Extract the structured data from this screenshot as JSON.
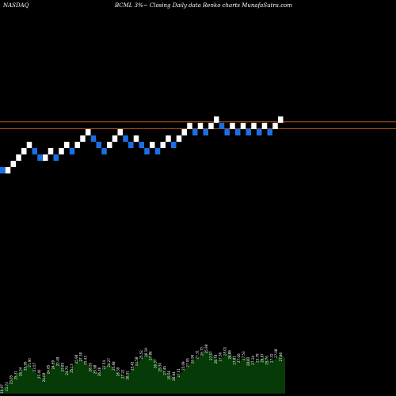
{
  "header": {
    "exchange": "NASDAQ",
    "title": "BCML 3%~ Closing Daily data Renko charts MunafaSutra.com"
  },
  "colors": {
    "background": "#000000",
    "up_brick": "#ffffff",
    "down_brick": "#1a6fe6",
    "reference_line": "#b3541a",
    "volume_fill": "#063a06",
    "volume_label": "#ffffff"
  },
  "chart_data": {
    "type": "renko",
    "brick_size_label": "3%",
    "grid": false,
    "reference_lines": [
      27.6,
      26.9
    ],
    "bricks": [
      {
        "dir": "down",
        "open": 22.95,
        "close": 22.3
      },
      {
        "dir": "up",
        "open": 22.3,
        "close": 22.95
      },
      {
        "dir": "up",
        "open": 22.95,
        "close": 23.6
      },
      {
        "dir": "up",
        "open": 23.6,
        "close": 24.25
      },
      {
        "dir": "up",
        "open": 24.25,
        "close": 24.9
      },
      {
        "dir": "up",
        "open": 24.9,
        "close": 25.55
      },
      {
        "dir": "down",
        "open": 24.9,
        "close": 24.25
      },
      {
        "dir": "down",
        "open": 24.25,
        "close": 23.6
      },
      {
        "dir": "up",
        "open": 23.6,
        "close": 24.25
      },
      {
        "dir": "up",
        "open": 24.25,
        "close": 24.9
      },
      {
        "dir": "down",
        "open": 24.25,
        "close": 23.6
      },
      {
        "dir": "up",
        "open": 24.25,
        "close": 24.9
      },
      {
        "dir": "up",
        "open": 24.9,
        "close": 25.55
      },
      {
        "dir": "down",
        "open": 24.9,
        "close": 24.25
      },
      {
        "dir": "up",
        "open": 24.9,
        "close": 25.55
      },
      {
        "dir": "up",
        "open": 25.55,
        "close": 26.2
      },
      {
        "dir": "up",
        "open": 26.2,
        "close": 26.85
      },
      {
        "dir": "down",
        "open": 26.2,
        "close": 25.55
      },
      {
        "dir": "down",
        "open": 25.55,
        "close": 24.9
      },
      {
        "dir": "down",
        "open": 24.9,
        "close": 24.25
      },
      {
        "dir": "up",
        "open": 24.9,
        "close": 25.55
      },
      {
        "dir": "up",
        "open": 25.55,
        "close": 26.2
      },
      {
        "dir": "up",
        "open": 26.2,
        "close": 26.85
      },
      {
        "dir": "down",
        "open": 26.2,
        "close": 25.55
      },
      {
        "dir": "down",
        "open": 25.55,
        "close": 24.9
      },
      {
        "dir": "up",
        "open": 25.55,
        "close": 26.2
      },
      {
        "dir": "down",
        "open": 25.55,
        "close": 24.9
      },
      {
        "dir": "down",
        "open": 24.9,
        "close": 24.25
      },
      {
        "dir": "up",
        "open": 24.9,
        "close": 25.55
      },
      {
        "dir": "down",
        "open": 24.9,
        "close": 24.25
      },
      {
        "dir": "up",
        "open": 24.9,
        "close": 25.55
      },
      {
        "dir": "up",
        "open": 25.55,
        "close": 26.2
      },
      {
        "dir": "down",
        "open": 25.55,
        "close": 24.9
      },
      {
        "dir": "up",
        "open": 25.55,
        "close": 26.2
      },
      {
        "dir": "up",
        "open": 26.2,
        "close": 26.85
      },
      {
        "dir": "up",
        "open": 26.85,
        "close": 27.5
      },
      {
        "dir": "down",
        "open": 26.85,
        "close": 26.2
      },
      {
        "dir": "up",
        "open": 26.85,
        "close": 27.5
      },
      {
        "dir": "down",
        "open": 26.85,
        "close": 26.2
      },
      {
        "dir": "up",
        "open": 26.85,
        "close": 27.5
      },
      {
        "dir": "up",
        "open": 27.5,
        "close": 28.15
      },
      {
        "dir": "down",
        "open": 27.5,
        "close": 26.85
      },
      {
        "dir": "down",
        "open": 26.85,
        "close": 26.2
      },
      {
        "dir": "up",
        "open": 26.85,
        "close": 27.5
      },
      {
        "dir": "down",
        "open": 26.85,
        "close": 26.2
      },
      {
        "dir": "up",
        "open": 26.85,
        "close": 27.5
      },
      {
        "dir": "down",
        "open": 26.85,
        "close": 26.2
      },
      {
        "dir": "up",
        "open": 26.85,
        "close": 27.5
      },
      {
        "dir": "down",
        "open": 26.85,
        "close": 26.2
      },
      {
        "dir": "up",
        "open": 26.85,
        "close": 27.5
      },
      {
        "dir": "down",
        "open": 26.85,
        "close": 26.2
      },
      {
        "dir": "up",
        "open": 26.85,
        "close": 27.5
      },
      {
        "dir": "up",
        "open": 27.5,
        "close": 28.15
      }
    ],
    "volume_price_labels": [
      "19.97",
      "21.73",
      "23.85",
      "25.31",
      "26.34",
      "25.95",
      "21.90",
      "23.57",
      "22.40",
      "24.08",
      "24.85",
      "24.69",
      "22.49",
      "23.85",
      "24.70",
      "25.13",
      "25.98",
      "27.38",
      "25.43",
      "26.20",
      "25.98",
      "26.46",
      "22.54",
      "24.27",
      "25.68",
      "26.39",
      "27.22",
      "28.91",
      "25.42",
      "24.58",
      "25.52",
      "26.19",
      "27.86",
      "26.37",
      "25.30",
      "27.45",
      "25.56",
      "26.84",
      "27.01",
      "25.09",
      "27.05",
      "26.90",
      "27.31",
      "26.72",
      "25.98",
      "27.57",
      "28.78",
      "27.56",
      "28.01",
      "26.86",
      "27.81",
      "27.06",
      "27.53",
      "28.82",
      "27.34",
      "25.79",
      "26.87",
      "25.76",
      "27.32",
      "27.08",
      "27.86"
    ],
    "volume_profile": [
      0.06,
      0.1,
      0.16,
      0.22,
      0.3,
      0.36,
      0.4,
      0.46,
      0.52,
      0.44,
      0.38,
      0.32,
      0.26,
      0.34,
      0.4,
      0.48,
      0.54,
      0.5,
      0.44,
      0.38,
      0.42,
      0.5,
      0.58,
      0.62,
      0.56,
      0.5,
      0.44,
      0.4,
      0.36,
      0.42,
      0.48,
      0.52,
      0.46,
      0.4,
      0.36,
      0.32,
      0.3,
      0.38,
      0.46,
      0.54,
      0.6,
      0.66,
      0.7,
      0.64,
      0.58,
      0.5,
      0.44,
      0.38,
      0.34,
      0.3,
      0.28,
      0.34,
      0.4,
      0.46,
      0.52,
      0.58,
      0.62,
      0.66,
      0.72,
      0.76,
      0.7,
      0.64,
      0.58,
      0.62,
      0.68,
      0.72,
      0.66,
      0.6,
      0.56,
      0.6,
      0.64,
      0.58,
      0.54,
      0.56,
      0.6,
      0.64,
      0.6,
      0.56,
      0.6,
      0.64,
      0.68,
      0.62
    ]
  }
}
